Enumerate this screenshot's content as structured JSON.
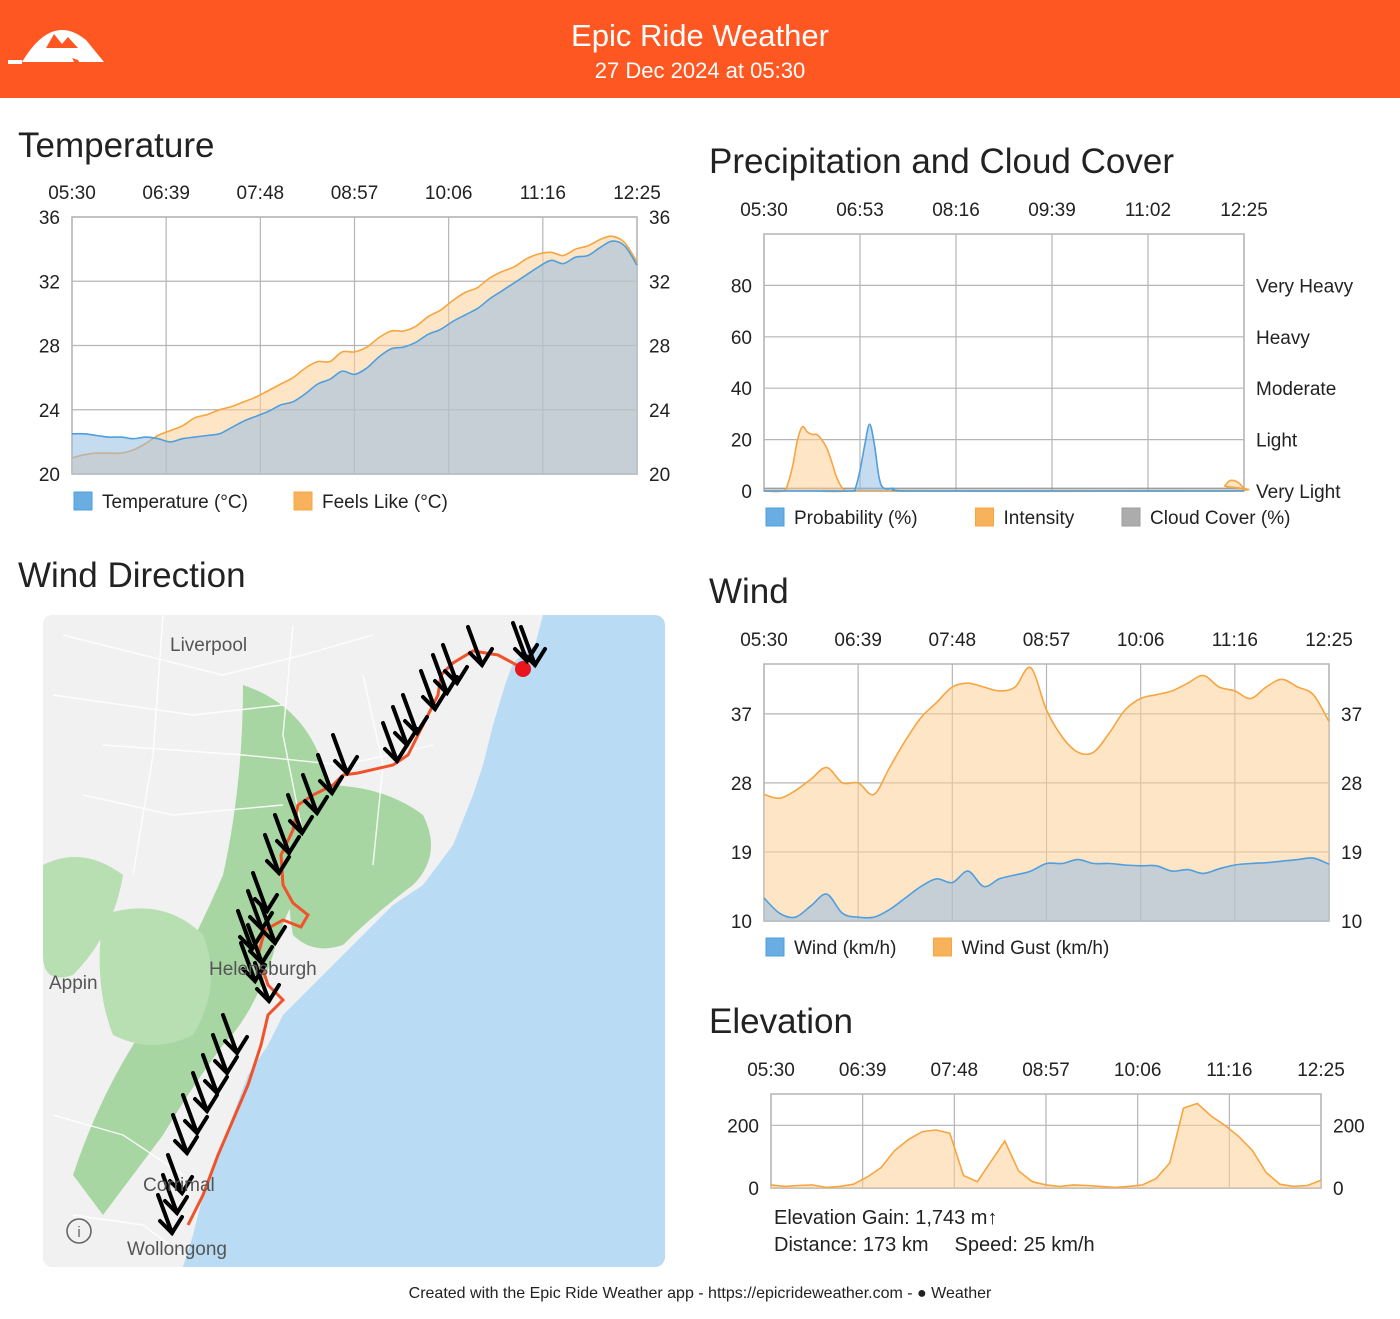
{
  "header": {
    "title": "Epic Ride Weather",
    "subtitle": "27 Dec 2024 at 05:30",
    "background": "#ff5722"
  },
  "sections": {
    "temperature": "Temperature",
    "precipitation": "Precipitation and Cloud Cover",
    "wind_direction": "Wind Direction",
    "wind": "Wind",
    "elevation": "Elevation"
  },
  "map": {
    "labels": [
      "Liverpool",
      "Appin",
      "Helensburgh",
      "Corrimal",
      "Wollongong"
    ],
    "info_icon": "info-icon",
    "colors": {
      "water": "#b9dcf4",
      "land": "#f2f2f2",
      "park": "#9ccf9a",
      "route": "#f0532b",
      "arrows": "#000000",
      "end_marker": "#e8141e"
    }
  },
  "elevation_info": {
    "gain": "Elevation Gain: 1,743 m↑",
    "distance": "Distance: 173 km",
    "speed": "Speed: 25 km/h"
  },
  "footer": "Created with the Epic Ride Weather app - https://epicrideweather.com -  Weather",
  "footer_text": "Created with the Epic Ride Weather app - https://epicrideweather.com - ",
  "footer_weather": "Weather",
  "chart_data": [
    {
      "id": "temperature",
      "type": "area",
      "title": "Temperature",
      "x_ticks": [
        "05:30",
        "06:39",
        "07:48",
        "08:57",
        "10:06",
        "11:16",
        "12:25"
      ],
      "y_ticks": [
        36,
        32,
        28,
        24,
        20
      ],
      "ylim": [
        20,
        36
      ],
      "grid": true,
      "legend": "bottom",
      "series": [
        {
          "name": "Temperature (°C)",
          "color": "#4f9fde",
          "values": [
            22.5,
            22.5,
            22.4,
            22.3,
            22.3,
            22.2,
            22.3,
            22.2,
            22.0,
            22.2,
            22.3,
            22.4,
            22.5,
            22.9,
            23.3,
            23.6,
            23.9,
            24.3,
            24.5,
            25.0,
            25.6,
            25.9,
            26.4,
            26.2,
            26.6,
            27.3,
            27.8,
            27.9,
            28.2,
            28.7,
            29.0,
            29.5,
            29.9,
            30.3,
            30.9,
            31.4,
            31.9,
            32.4,
            32.9,
            33.3,
            33.1,
            33.5,
            33.6,
            34.1,
            34.5,
            34.2,
            33.0
          ]
        },
        {
          "name": "Feels Like (°C)",
          "color": "#f7a540",
          "values": [
            21.0,
            21.2,
            21.3,
            21.3,
            21.3,
            21.5,
            21.9,
            22.4,
            22.7,
            23.0,
            23.5,
            23.7,
            24.0,
            24.2,
            24.5,
            24.8,
            25.2,
            25.6,
            26.0,
            26.6,
            27.0,
            27.0,
            27.6,
            27.6,
            27.9,
            28.5,
            28.9,
            28.9,
            29.2,
            29.8,
            30.2,
            30.8,
            31.3,
            31.6,
            32.2,
            32.6,
            32.9,
            33.4,
            33.7,
            33.8,
            33.6,
            34.0,
            34.2,
            34.6,
            34.8,
            34.4,
            33.2
          ]
        }
      ]
    },
    {
      "id": "precipitation",
      "type": "area",
      "title": "Precipitation and Cloud Cover",
      "x_ticks": [
        "05:30",
        "06:53",
        "08:16",
        "09:39",
        "11:02",
        "12:25"
      ],
      "y_ticks": [
        0,
        20,
        40,
        60,
        80
      ],
      "ylim": [
        0,
        100
      ],
      "right_labels": [
        "Very Heavy",
        "Heavy",
        "Moderate",
        "Light",
        "Very Light"
      ],
      "grid": true,
      "legend": "bottom",
      "series": [
        {
          "name": "Probability (%)",
          "color": "#4f9fde",
          "x": [
            0,
            9,
            18,
            19,
            20,
            21,
            22,
            23,
            24,
            25,
            27,
            30,
            60,
            100
          ],
          "values": [
            0,
            0,
            0,
            1,
            8,
            18,
            26,
            18,
            5,
            1,
            1,
            0,
            0,
            0
          ]
        },
        {
          "name": "Intensity",
          "color": "#f7a540",
          "x": [
            0,
            4,
            5,
            6,
            7,
            8,
            9,
            10,
            11,
            12,
            13,
            14,
            15,
            16,
            17,
            18,
            95,
            96,
            97,
            98,
            99,
            100
          ],
          "values": [
            0,
            0,
            3,
            10,
            20,
            25,
            23,
            22,
            22,
            20,
            17,
            12,
            6,
            2,
            0,
            0,
            0,
            2,
            4,
            4,
            3,
            1
          ]
        },
        {
          "name": "Cloud Cover (%)",
          "color": "#9e9e9e",
          "x": [
            0,
            100
          ],
          "values": [
            1,
            1
          ]
        }
      ]
    },
    {
      "id": "wind",
      "type": "area",
      "title": "Wind",
      "x_ticks": [
        "05:30",
        "06:39",
        "07:48",
        "08:57",
        "10:06",
        "11:16",
        "12:25"
      ],
      "y_ticks": [
        37,
        28,
        19,
        10
      ],
      "ylim": [
        10,
        43.5
      ],
      "grid": true,
      "legend": "bottom",
      "series": [
        {
          "name": "Wind (km/h)",
          "color": "#4f9fde",
          "values": [
            13.0,
            11.0,
            10.5,
            12.0,
            13.5,
            11.0,
            10.5,
            10.5,
            11.5,
            13.0,
            14.5,
            15.5,
            15.0,
            16.5,
            14.5,
            15.5,
            16.0,
            16.5,
            17.5,
            17.5,
            18.0,
            17.5,
            17.5,
            17.3,
            17.2,
            17.2,
            16.5,
            16.7,
            16.2,
            16.8,
            17.3,
            17.5,
            17.6,
            17.8,
            18.0,
            18.2,
            17.4
          ]
        },
        {
          "name": "Wind Gust (km/h)",
          "color": "#f7a540",
          "values": [
            26.5,
            26.0,
            27.0,
            28.5,
            30.0,
            28.0,
            28.0,
            26.5,
            30.0,
            33.5,
            36.5,
            38.5,
            40.5,
            41.0,
            40.5,
            40.0,
            40.5,
            43.0,
            37.5,
            34.0,
            32.0,
            32.0,
            34.5,
            37.5,
            39.0,
            39.5,
            40.0,
            41.0,
            42.0,
            40.5,
            40.0,
            39.0,
            40.5,
            41.5,
            40.5,
            39.5,
            36.0
          ]
        }
      ]
    },
    {
      "id": "elevation",
      "type": "area",
      "title": "Elevation",
      "x_ticks": [
        "05:30",
        "06:39",
        "07:48",
        "08:57",
        "10:06",
        "11:16",
        "12:25"
      ],
      "y_ticks": [
        200,
        0
      ],
      "ylim": [
        0,
        300
      ],
      "grid": true,
      "series": [
        {
          "name": "Elevation",
          "color": "#f7a540",
          "values": [
            10,
            5,
            8,
            10,
            2,
            5,
            12,
            35,
            65,
            120,
            155,
            180,
            185,
            175,
            40,
            20,
            85,
            150,
            55,
            20,
            10,
            5,
            10,
            8,
            5,
            2,
            5,
            10,
            30,
            80,
            255,
            270,
            230,
            200,
            165,
            120,
            50,
            12,
            5,
            8,
            25
          ]
        }
      ]
    }
  ]
}
